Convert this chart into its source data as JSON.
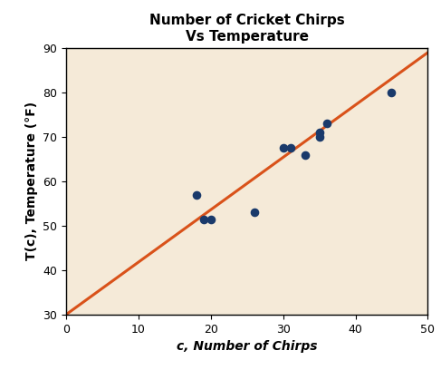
{
  "title": "Number of Cricket Chirps\nVs Temperature",
  "xlabel": "c, Number of Chirps",
  "ylabel": "T(c), Temperature (°F)",
  "xlim": [
    0,
    50
  ],
  "ylim": [
    30,
    90
  ],
  "xticks": [
    0,
    10,
    20,
    30,
    40,
    50
  ],
  "yticks": [
    30,
    40,
    50,
    60,
    70,
    80,
    90
  ],
  "scatter_x": [
    18,
    19,
    20,
    26,
    30,
    31,
    33,
    35,
    35,
    36,
    45
  ],
  "scatter_y": [
    57,
    51.5,
    51.5,
    53,
    67.5,
    67.5,
    66,
    70,
    71,
    73,
    80
  ],
  "scatter_color": "#1a3a6b",
  "scatter_size": 35,
  "line_x": [
    0,
    50
  ],
  "line_y": [
    30,
    89
  ],
  "line_color": "#d9521a",
  "line_width": 2.2,
  "bg_color": "#f5ead8",
  "fig_bg_color": "#ffffff",
  "title_fontsize": 11,
  "label_fontsize": 10,
  "tick_fontsize": 9,
  "title_fontweight": "bold",
  "label_fontweight": "bold",
  "xlabel_style": "italic"
}
